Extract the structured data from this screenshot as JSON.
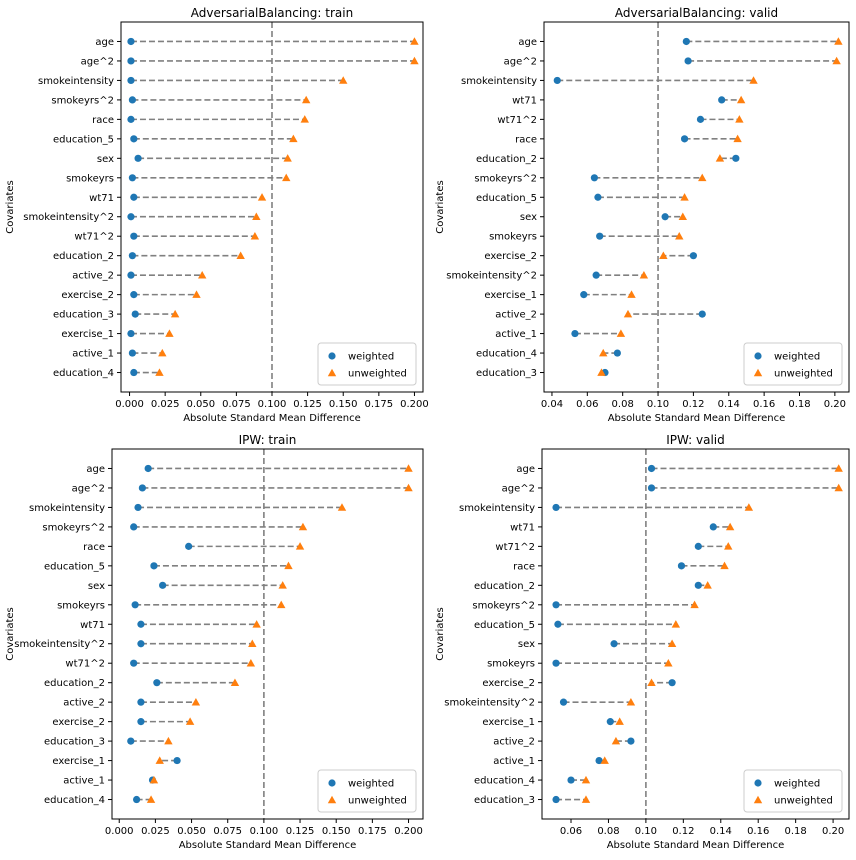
{
  "colors": {
    "weighted": "#1f77b4",
    "unweighted": "#ff7f0e",
    "connector": "#808080",
    "threshold": "#808080"
  },
  "chart_data": [
    {
      "type": "scatter",
      "title": "AdversarialBalancing: train",
      "xlabel": "Absolute Standard Mean Difference",
      "ylabel": "Covariates",
      "xlim": [
        -0.006,
        0.206
      ],
      "xticks": [
        "0.000",
        "0.025",
        "0.050",
        "0.075",
        "0.100",
        "0.125",
        "0.150",
        "0.175",
        "0.200"
      ],
      "threshold": 0.1,
      "legend": {
        "position": "lower-right",
        "entries": [
          "weighted",
          "unweighted"
        ]
      },
      "categories": [
        "age",
        "age^2",
        "smokeintensity",
        "smokeyrs^2",
        "race",
        "education_5",
        "sex",
        "smokeyrs",
        "wt71",
        "smokeintensity^2",
        "wt71^2",
        "education_2",
        "active_2",
        "exercise_2",
        "education_3",
        "exercise_1",
        "active_1",
        "education_4"
      ],
      "series": [
        {
          "name": "weighted",
          "values": [
            0.001,
            0.001,
            0.001,
            0.002,
            0.001,
            0.003,
            0.006,
            0.002,
            0.003,
            0.001,
            0.003,
            0.002,
            0.001,
            0.003,
            0.004,
            0.001,
            0.002,
            0.003
          ]
        },
        {
          "name": "unweighted",
          "values": [
            0.2,
            0.2,
            0.15,
            0.124,
            0.123,
            0.115,
            0.111,
            0.11,
            0.093,
            0.089,
            0.088,
            0.078,
            0.051,
            0.047,
            0.032,
            0.028,
            0.023,
            0.021
          ]
        }
      ]
    },
    {
      "type": "scatter",
      "title": "AdversarialBalancing: valid",
      "xlabel": "Absolute Standard Mean Difference",
      "ylabel": "Covariates",
      "xlim": [
        0.0355,
        0.208
      ],
      "xticks": [
        "0.04",
        "0.06",
        "0.08",
        "0.10",
        "0.12",
        "0.14",
        "0.16",
        "0.18",
        "0.20"
      ],
      "threshold": 0.1,
      "legend": {
        "position": "lower-right",
        "entries": [
          "weighted",
          "unweighted"
        ]
      },
      "categories": [
        "age",
        "age^2",
        "smokeintensity",
        "wt71",
        "wt71^2",
        "race",
        "education_2",
        "smokeyrs^2",
        "education_5",
        "sex",
        "smokeyrs",
        "exercise_2",
        "smokeintensity^2",
        "exercise_1",
        "active_2",
        "active_1",
        "education_4",
        "education_3"
      ],
      "series": [
        {
          "name": "weighted",
          "values": [
            0.116,
            0.117,
            0.043,
            0.136,
            0.124,
            0.115,
            0.144,
            0.064,
            0.066,
            0.104,
            0.067,
            0.12,
            0.065,
            0.058,
            0.125,
            0.053,
            0.077,
            0.07
          ]
        },
        {
          "name": "unweighted",
          "values": [
            0.202,
            0.201,
            0.154,
            0.147,
            0.146,
            0.145,
            0.135,
            0.125,
            0.115,
            0.114,
            0.112,
            0.103,
            0.092,
            0.085,
            0.083,
            0.079,
            0.069,
            0.068
          ]
        }
      ]
    },
    {
      "type": "scatter",
      "title": "IPW: train",
      "xlabel": "Absolute Standard Mean Difference",
      "ylabel": "Covariates",
      "xlim": [
        -0.005,
        0.21
      ],
      "xticks": [
        "0.000",
        "0.025",
        "0.050",
        "0.075",
        "0.100",
        "0.125",
        "0.150",
        "0.175",
        "0.200"
      ],
      "threshold": 0.1,
      "legend": {
        "position": "lower-right",
        "entries": [
          "weighted",
          "unweighted"
        ]
      },
      "categories": [
        "age",
        "age^2",
        "smokeintensity",
        "smokeyrs^2",
        "race",
        "education_5",
        "sex",
        "smokeyrs",
        "wt71",
        "smokeintensity^2",
        "wt71^2",
        "education_2",
        "active_2",
        "exercise_2",
        "education_3",
        "exercise_1",
        "active_1",
        "education_4"
      ],
      "series": [
        {
          "name": "weighted",
          "values": [
            0.02,
            0.016,
            0.013,
            0.01,
            0.048,
            0.024,
            0.03,
            0.011,
            0.015,
            0.015,
            0.01,
            0.026,
            0.015,
            0.015,
            0.008,
            0.04,
            0.023,
            0.012
          ]
        },
        {
          "name": "unweighted",
          "values": [
            0.2,
            0.2,
            0.154,
            0.127,
            0.125,
            0.117,
            0.113,
            0.112,
            0.095,
            0.092,
            0.091,
            0.08,
            0.053,
            0.049,
            0.034,
            0.028,
            0.024,
            0.022
          ]
        }
      ]
    },
    {
      "type": "scatter",
      "title": "IPW: valid",
      "xlabel": "Absolute Standard Mean Difference",
      "ylabel": "Covariates",
      "xlim": [
        0.0445,
        0.2085
      ],
      "xticks": [
        "0.06",
        "0.08",
        "0.10",
        "0.12",
        "0.14",
        "0.16",
        "0.18",
        "0.20"
      ],
      "threshold": 0.1,
      "legend": {
        "position": "lower-right",
        "entries": [
          "weighted",
          "unweighted"
        ]
      },
      "categories": [
        "age",
        "age^2",
        "smokeintensity",
        "wt71",
        "wt71^2",
        "race",
        "education_2",
        "smokeyrs^2",
        "education_5",
        "sex",
        "smokeyrs",
        "exercise_2",
        "smokeintensity^2",
        "exercise_1",
        "active_2",
        "active_1",
        "education_4",
        "education_3"
      ],
      "series": [
        {
          "name": "weighted",
          "values": [
            0.103,
            0.103,
            0.052,
            0.136,
            0.128,
            0.119,
            0.128,
            0.052,
            0.053,
            0.083,
            0.052,
            0.114,
            0.056,
            0.081,
            0.092,
            0.075,
            0.06,
            0.052
          ]
        },
        {
          "name": "unweighted",
          "values": [
            0.203,
            0.203,
            0.155,
            0.145,
            0.144,
            0.142,
            0.133,
            0.126,
            0.116,
            0.114,
            0.112,
            0.103,
            0.092,
            0.086,
            0.084,
            0.078,
            0.068,
            0.068
          ]
        }
      ]
    }
  ]
}
